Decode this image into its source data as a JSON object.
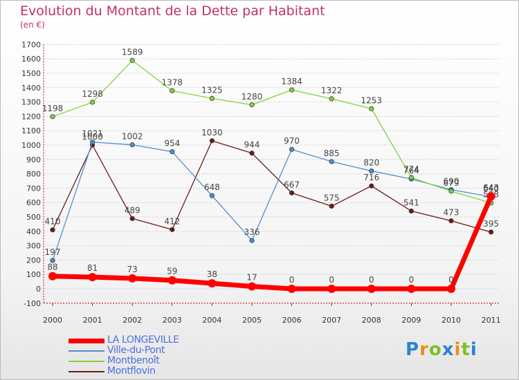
{
  "title": "Evolution du Montant de la Dette par Habitant",
  "unit": "(en €)",
  "logo": "Proxiti",
  "chart_data": {
    "type": "line",
    "title": "Evolution du Montant de la Dette par Habitant",
    "ylabel": "(en €)",
    "xlabel": "",
    "categories": [
      "2000",
      "2001",
      "2002",
      "2003",
      "2004",
      "2005",
      "2006",
      "2007",
      "2008",
      "2009",
      "2010",
      "2011"
    ],
    "ylim": [
      -100,
      1700
    ],
    "yticks": [
      -100,
      0,
      100,
      200,
      300,
      400,
      500,
      600,
      700,
      800,
      900,
      1000,
      1100,
      1200,
      1300,
      1400,
      1500,
      1600,
      1700
    ],
    "grid": "horizontal",
    "legend_position": "bottom-left",
    "series": [
      {
        "name": "LA LONGEVILLE",
        "color": "#ff0000",
        "values": [
          88,
          81,
          73,
          59,
          38,
          17,
          0,
          0,
          0,
          0,
          0,
          643
        ]
      },
      {
        "name": "Ville-du-Pont",
        "color": "#4f8fd0",
        "values": [
          197,
          1021,
          1002,
          954,
          648,
          336,
          970,
          885,
          820,
          764,
          690,
          640
        ]
      },
      {
        "name": "Montbenoît",
        "color": "#7fd23f",
        "values": [
          1198,
          1298,
          1589,
          1378,
          1325,
          1280,
          1384,
          1322,
          1253,
          774,
          679,
          598
        ]
      },
      {
        "name": "Montflovin",
        "color": "#6b1a1a",
        "values": [
          410,
          1000,
          489,
          412,
          1030,
          944,
          667,
          575,
          716,
          541,
          473,
          395
        ]
      }
    ]
  }
}
